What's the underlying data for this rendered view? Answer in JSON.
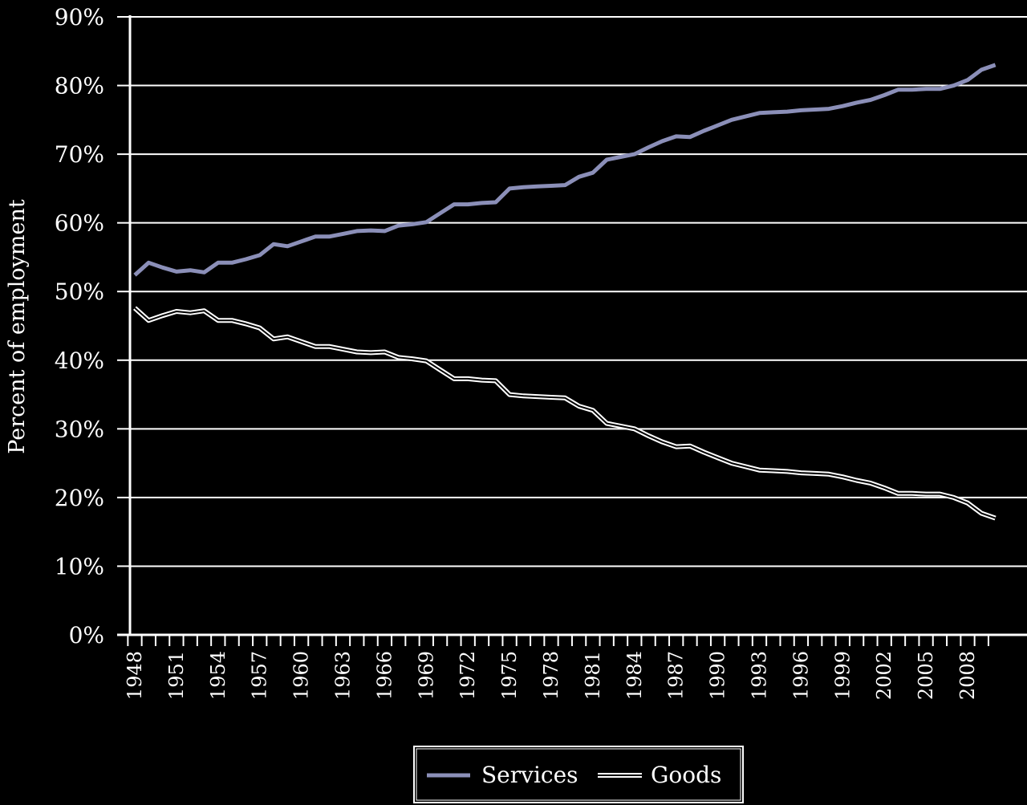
{
  "chart_data": {
    "type": "line",
    "title": "",
    "xlabel": "",
    "ylabel": "Percent of employment",
    "ylim": [
      0,
      90
    ],
    "y_ticks": [
      "0%",
      "10%",
      "20%",
      "30%",
      "40%",
      "50%",
      "60%",
      "70%",
      "80%",
      "90%"
    ],
    "x_tick_labels": [
      "1948",
      "1951",
      "1954",
      "1957",
      "1960",
      "1963",
      "1966",
      "1969",
      "1972",
      "1975",
      "1978",
      "1981",
      "1984",
      "1987",
      "1990",
      "1993",
      "1996",
      "1999",
      "2002",
      "2005",
      "2008"
    ],
    "grid": true,
    "legend_position": "bottom",
    "x": [
      1948,
      1949,
      1950,
      1951,
      1952,
      1953,
      1954,
      1955,
      1956,
      1957,
      1958,
      1959,
      1960,
      1961,
      1962,
      1963,
      1964,
      1965,
      1966,
      1967,
      1968,
      1969,
      1970,
      1971,
      1972,
      1973,
      1974,
      1975,
      1976,
      1977,
      1978,
      1979,
      1980,
      1981,
      1982,
      1983,
      1984,
      1985,
      1986,
      1987,
      1988,
      1989,
      1990,
      1991,
      1992,
      1993,
      1994,
      1995,
      1996,
      1997,
      1998,
      1999,
      2000,
      2001,
      2002,
      2003,
      2004,
      2005,
      2006,
      2007,
      2008,
      2009,
      2010
    ],
    "series": [
      {
        "name": "Services",
        "color": "#8b8fb8",
        "values": [
          52.4,
          54.2,
          53.5,
          52.9,
          53.1,
          52.8,
          54.2,
          54.2,
          54.7,
          55.3,
          56.9,
          56.6,
          57.3,
          58.0,
          58.0,
          58.4,
          58.8,
          58.9,
          58.8,
          59.6,
          59.8,
          60.1,
          61.4,
          62.7,
          62.7,
          62.9,
          63.0,
          65.0,
          65.2,
          65.3,
          65.4,
          65.5,
          66.7,
          67.3,
          69.2,
          69.6,
          70.0,
          71.0,
          71.9,
          72.6,
          72.5,
          73.4,
          74.2,
          75.0,
          75.5,
          76.0,
          76.1,
          76.2,
          76.4,
          76.5,
          76.6,
          77.0,
          77.5,
          77.9,
          78.6,
          79.4,
          79.4,
          79.5,
          79.5,
          80.0,
          80.8,
          82.3,
          83.0
        ]
      },
      {
        "name": "Goods",
        "color": "#000000",
        "values": [
          47.6,
          45.8,
          46.5,
          47.1,
          46.9,
          47.2,
          45.8,
          45.8,
          45.3,
          44.7,
          43.1,
          43.4,
          42.7,
          42.0,
          42.0,
          41.6,
          41.2,
          41.1,
          41.2,
          40.4,
          40.2,
          39.9,
          38.6,
          37.3,
          37.3,
          37.1,
          37.0,
          35.0,
          34.8,
          34.7,
          34.6,
          34.5,
          33.3,
          32.7,
          30.8,
          30.4,
          30.0,
          29.0,
          28.1,
          27.4,
          27.5,
          26.6,
          25.8,
          25.0,
          24.5,
          24.0,
          23.9,
          23.8,
          23.6,
          23.5,
          23.4,
          23.0,
          22.5,
          22.1,
          21.4,
          20.6,
          20.6,
          20.5,
          20.5,
          20.0,
          19.2,
          17.7,
          17.0
        ]
      }
    ]
  }
}
